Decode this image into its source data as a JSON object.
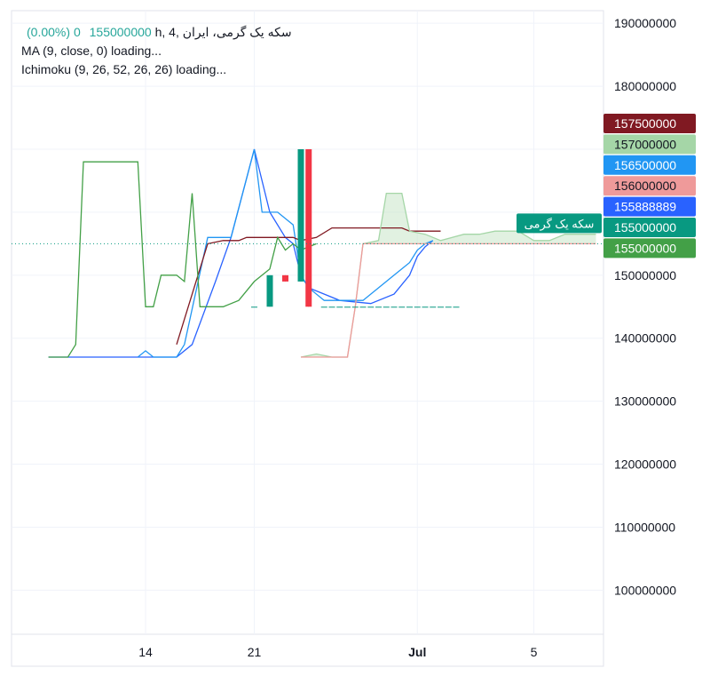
{
  "legend": {
    "symbol": "سکه یک گرمی، ایران ,h, 4",
    "price": "155000000",
    "change": "0 (0.00%)",
    "ma": "MA (9, close, 0) loading...",
    "ichimoku": "Ichimoku (9, 26, 52, 26, 26) loading..."
  },
  "colors": {
    "up": "#089981",
    "down": "#f23645",
    "ma": "#2962ff",
    "conversion": "#2196f3",
    "base": "#801922",
    "lagging": "#43a047",
    "leadA": "#a5d6a7",
    "leadB": "#ef9a9a",
    "cloud": "#c8e6c9",
    "grid": "#f0f3fa"
  },
  "chart_data": {
    "type": "candlestick",
    "ylim": [
      93000000,
      192000000
    ],
    "y_ticks": [
      100000000,
      110000000,
      120000000,
      130000000,
      140000000,
      150000000,
      160000000,
      170000000,
      180000000,
      190000000
    ],
    "y_tick_labels": [
      "100000000",
      "110000000",
      "120000000",
      "130000000",
      "140000000",
      "150000000",
      "",
      "",
      "180000000",
      "190000000"
    ],
    "x_ticks": [
      {
        "label": "14",
        "bar": 0
      },
      {
        "label": "21",
        "bar": 14
      },
      {
        "label": "Jul",
        "bar": 35
      },
      {
        "label": "5",
        "bar": 50
      }
    ],
    "price_line": 155000000,
    "candles": [
      {
        "bar": 14,
        "o": 145000000,
        "h": 145000000,
        "l": 145000000,
        "c": 145000000
      },
      {
        "bar": 16,
        "o": 145000000,
        "h": 150000000,
        "l": 145000000,
        "c": 150000000
      },
      {
        "bar": 18,
        "o": 150000000,
        "h": 150000000,
        "l": 149000000,
        "c": 149000000
      },
      {
        "bar": 20,
        "o": 149000000,
        "h": 170000000,
        "l": 149000000,
        "c": 170000000
      },
      {
        "bar": 21,
        "o": 170000000,
        "h": 170000000,
        "l": 145000000,
        "c": 145000000
      },
      {
        "bar": 23,
        "o": 145000000,
        "h": 145000000,
        "l": 145000000,
        "c": 145000000
      },
      {
        "bar": 24,
        "o": 145000000,
        "h": 145000000,
        "l": 145000000,
        "c": 145000000
      },
      {
        "bar": 25,
        "o": 145000000,
        "h": 145000000,
        "l": 145000000,
        "c": 145000000
      },
      {
        "bar": 26,
        "o": 145000000,
        "h": 145000000,
        "l": 145000000,
        "c": 145000000
      },
      {
        "bar": 27,
        "o": 145000000,
        "h": 145000000,
        "l": 145000000,
        "c": 145000000
      },
      {
        "bar": 28,
        "o": 145000000,
        "h": 145000000,
        "l": 145000000,
        "c": 145000000
      },
      {
        "bar": 29,
        "o": 145000000,
        "h": 145000000,
        "l": 145000000,
        "c": 145000000
      },
      {
        "bar": 30,
        "o": 145000000,
        "h": 145000000,
        "l": 145000000,
        "c": 145000000
      },
      {
        "bar": 31,
        "o": 145000000,
        "h": 145000000,
        "l": 145000000,
        "c": 145000000
      },
      {
        "bar": 32,
        "o": 145000000,
        "h": 145000000,
        "l": 145000000,
        "c": 145000000
      },
      {
        "bar": 33,
        "o": 145000000,
        "h": 145000000,
        "l": 145000000,
        "c": 145000000
      },
      {
        "bar": 34,
        "o": 145000000,
        "h": 145000000,
        "l": 145000000,
        "c": 145000000
      },
      {
        "bar": 35,
        "o": 145000000,
        "h": 145000000,
        "l": 145000000,
        "c": 145000000
      },
      {
        "bar": 36,
        "o": 145000000,
        "h": 145000000,
        "l": 145000000,
        "c": 145000000
      },
      {
        "bar": 37,
        "o": 145000000,
        "h": 145000000,
        "l": 145000000,
        "c": 145000000
      },
      {
        "bar": 38,
        "o": 145000000,
        "h": 145000000,
        "l": 145000000,
        "c": 145000000
      },
      {
        "bar": 39,
        "o": 145000000,
        "h": 145000000,
        "l": 145000000,
        "c": 145000000
      },
      {
        "bar": 40,
        "o": 145000000,
        "h": 145000000,
        "l": 145000000,
        "c": 145000000
      }
    ],
    "series": [
      {
        "name": "MA (9, close, 0)",
        "key": "ma",
        "points": [
          [
            -12.5,
            137000000
          ],
          [
            0,
            137000000
          ],
          [
            4,
            137000000
          ],
          [
            6,
            139000000
          ],
          [
            9,
            149000000
          ],
          [
            11,
            156000000
          ],
          [
            14,
            170000000
          ],
          [
            16,
            160000000
          ],
          [
            18,
            156000000
          ],
          [
            19,
            155000000
          ],
          [
            20,
            150000000
          ],
          [
            21,
            148000000
          ],
          [
            25,
            146000000
          ],
          [
            29,
            145500000
          ],
          [
            32,
            147000000
          ],
          [
            34,
            150000000
          ],
          [
            35,
            153000000
          ],
          [
            36,
            154500000
          ],
          [
            37,
            155500000
          ]
        ]
      },
      {
        "name": "Conversion Line",
        "key": "conversion",
        "points": [
          [
            -1,
            137000000
          ],
          [
            0,
            138000000
          ],
          [
            1,
            137000000
          ],
          [
            4,
            137000000
          ],
          [
            5,
            139000000
          ],
          [
            8,
            156000000
          ],
          [
            9,
            156000000
          ],
          [
            11,
            156000000
          ],
          [
            14,
            170000000
          ],
          [
            15,
            160000000
          ],
          [
            17,
            160000000
          ],
          [
            19,
            158000000
          ],
          [
            20,
            150000000
          ],
          [
            21,
            148000000
          ],
          [
            23,
            146000000
          ],
          [
            26,
            146000000
          ],
          [
            28,
            146000000
          ],
          [
            30,
            148000000
          ],
          [
            32,
            150000000
          ],
          [
            34,
            152000000
          ],
          [
            35,
            154000000
          ],
          [
            36,
            155000000
          ],
          [
            37,
            155500000
          ]
        ]
      },
      {
        "name": "Base Line",
        "key": "base",
        "points": [
          [
            4,
            139000000
          ],
          [
            8,
            155000000
          ],
          [
            10,
            155500000
          ],
          [
            12,
            155500000
          ],
          [
            13,
            156000000
          ],
          [
            17,
            156000000
          ],
          [
            19,
            156000000
          ],
          [
            20,
            155500000
          ],
          [
            22,
            156000000
          ],
          [
            24,
            157500000
          ],
          [
            26,
            157500000
          ],
          [
            28,
            157500000
          ],
          [
            30,
            157500000
          ],
          [
            32,
            157500000
          ],
          [
            33,
            157500000
          ],
          [
            34,
            157000000
          ],
          [
            36,
            157000000
          ],
          [
            38,
            157000000
          ]
        ]
      },
      {
        "name": "Lagging Span",
        "key": "lagging",
        "points": [
          [
            -12.5,
            137000000
          ],
          [
            -10,
            137000000
          ],
          [
            -9,
            139000000
          ],
          [
            -8,
            168000000
          ],
          [
            -5,
            168000000
          ],
          [
            -1,
            168000000
          ],
          [
            0,
            145000000
          ],
          [
            1,
            145000000
          ],
          [
            2,
            150000000
          ],
          [
            4,
            150000000
          ],
          [
            5,
            149000000
          ],
          [
            6,
            163000000
          ],
          [
            7,
            145000000
          ],
          [
            10,
            145000000
          ],
          [
            12,
            146000000
          ],
          [
            14,
            149000000
          ],
          [
            15,
            150000000
          ],
          [
            16,
            151000000
          ],
          [
            17,
            156000000
          ],
          [
            18,
            154000000
          ],
          [
            19,
            155000000
          ],
          [
            20,
            154000000
          ],
          [
            22,
            155000000
          ]
        ]
      },
      {
        "name": "Leading Span A",
        "key": "leadA",
        "points": [
          [
            20,
            137000000
          ],
          [
            22,
            137500000
          ],
          [
            24,
            137000000
          ],
          [
            26,
            137000000
          ],
          [
            27,
            145000000
          ],
          [
            28,
            155000000
          ],
          [
            30,
            155500000
          ],
          [
            31,
            163000000
          ],
          [
            33,
            163000000
          ],
          [
            34,
            157000000
          ],
          [
            36,
            156500000
          ],
          [
            38,
            155500000
          ],
          [
            41,
            156500000
          ],
          [
            43,
            156500000
          ],
          [
            45,
            157000000
          ],
          [
            48,
            157000000
          ],
          [
            50,
            155500000
          ],
          [
            52,
            155500000
          ],
          [
            54,
            156500000
          ],
          [
            56,
            156500000
          ],
          [
            58,
            156500000
          ]
        ]
      },
      {
        "name": "Leading Span B",
        "key": "leadB",
        "points": [
          [
            20,
            137000000
          ],
          [
            22,
            137000000
          ],
          [
            24,
            137000000
          ],
          [
            26,
            137000000
          ],
          [
            27,
            145000000
          ],
          [
            28,
            155000000
          ],
          [
            30,
            155000000
          ],
          [
            32,
            155000000
          ],
          [
            34,
            155000000
          ],
          [
            36,
            155000000
          ],
          [
            38,
            155000000
          ],
          [
            41,
            155000000
          ],
          [
            43,
            155000000
          ],
          [
            45,
            155000000
          ],
          [
            48,
            155000000
          ],
          [
            50,
            155000000
          ],
          [
            52,
            155000000
          ],
          [
            54,
            155000000
          ],
          [
            56,
            155000000
          ],
          [
            58,
            155000000
          ]
        ]
      }
    ],
    "price_labels": [
      {
        "value": "157500000",
        "color": "#801922",
        "text_color": "#ffffff"
      },
      {
        "value": "157000000",
        "color": "#a5d6a7",
        "text_color": "#131722"
      },
      {
        "value": "156500000",
        "color": "#2196f3",
        "text_color": "#ffffff"
      },
      {
        "value": "156000000",
        "color": "#ef9a9a",
        "text_color": "#131722"
      },
      {
        "value": "155888889",
        "color": "#2962ff",
        "text_color": "#ffffff"
      },
      {
        "value": "155000000",
        "color": "#089981",
        "text_color": "#ffffff"
      },
      {
        "value": "155000000",
        "color": "#43a047",
        "text_color": "#ffffff"
      }
    ],
    "symbol_tag": "سکه یک گرمی"
  }
}
